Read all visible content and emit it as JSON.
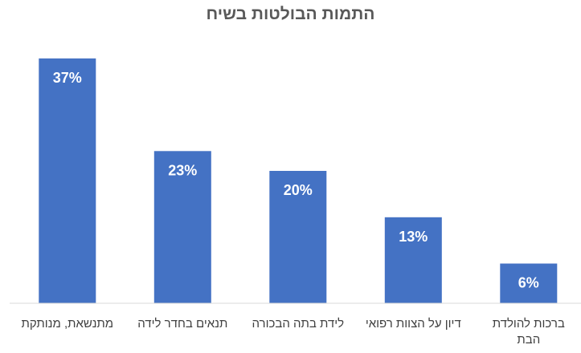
{
  "chart_data": {
    "type": "bar",
    "title": "התמות הבולטות בשיח",
    "categories": [
      [
        "מתנשאת, מנותקת"
      ],
      [
        "תנאים בחדר לידה"
      ],
      [
        "לידת בתה הבכורה"
      ],
      [
        "דיון על הצוות רפואי"
      ],
      [
        "ברכות להולדת",
        "הבת"
      ]
    ],
    "values": [
      37,
      23,
      20,
      13,
      6
    ],
    "value_labels": [
      "37%",
      "23%",
      "20%",
      "13%",
      "6%"
    ],
    "ylim": [
      0,
      40
    ],
    "grid": false,
    "legend": "none",
    "bar_color": "#4472c4",
    "label_color": "#ffffff",
    "axis_color": "#d9d9d9"
  }
}
